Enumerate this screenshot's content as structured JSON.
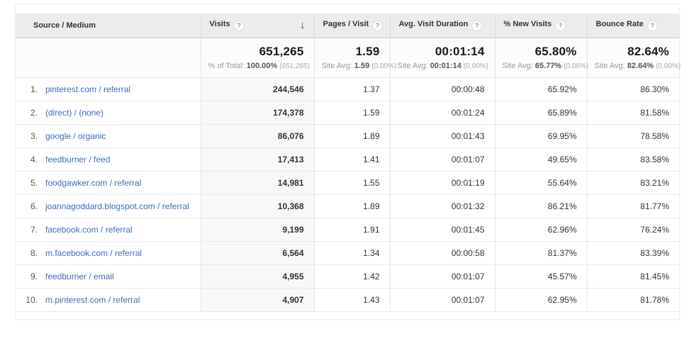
{
  "colors": {
    "link_blue": "#3d6db5",
    "header_gray": "#ececec",
    "sorted_col_bg": "#f8f8f8"
  },
  "table": {
    "columns": [
      {
        "label": "Source / Medium",
        "help": false,
        "sorted": false
      },
      {
        "label": "Visits",
        "help": true,
        "sorted": true,
        "sort_icon": "↓"
      },
      {
        "label": "Pages / Visit",
        "help": true,
        "sorted": false
      },
      {
        "label": "Avg. Visit Duration",
        "help": true,
        "sorted": false
      },
      {
        "label": "% New Visits",
        "help": true,
        "sorted": false
      },
      {
        "label": "Bounce Rate",
        "help": true,
        "sorted": false
      }
    ],
    "help_glyph": "?",
    "sort_icon": "↓",
    "summary": {
      "visits": {
        "value": "651,265",
        "sub_prefix": "% of Total:",
        "sub_value": "100.00%",
        "sub_paren": "(651,265)"
      },
      "pages": {
        "value": "1.59",
        "sub_prefix": "Site Avg:",
        "sub_value": "1.59",
        "sub_paren": "(0.00%)"
      },
      "duration": {
        "value": "00:01:14",
        "sub_prefix": "Site Avg:",
        "sub_value": "00:01:14",
        "sub_paren": "(0.00%)"
      },
      "new_visits": {
        "value": "65.80%",
        "sub_prefix": "Site Avg:",
        "sub_value": "65.77%",
        "sub_paren": "(0.06%)"
      },
      "bounce": {
        "value": "82.64%",
        "sub_prefix": "Site Avg:",
        "sub_value": "82.64%",
        "sub_paren": "(0.00%)"
      }
    },
    "rows": [
      {
        "rank": "1.",
        "source": "pinterest.com / referral",
        "visits": "244,546",
        "pages": "1.37",
        "duration": "00:00:48",
        "new_visits": "65.92%",
        "bounce": "86.30%"
      },
      {
        "rank": "2.",
        "source": "(direct) / (none)",
        "visits": "174,378",
        "pages": "1.59",
        "duration": "00:01:24",
        "new_visits": "65.89%",
        "bounce": "81.58%"
      },
      {
        "rank": "3.",
        "source": "google / organic",
        "visits": "86,076",
        "pages": "1.89",
        "duration": "00:01:43",
        "new_visits": "69.95%",
        "bounce": "78.58%"
      },
      {
        "rank": "4.",
        "source": "feedburner / feed",
        "visits": "17,413",
        "pages": "1.41",
        "duration": "00:01:07",
        "new_visits": "49.65%",
        "bounce": "83.58%"
      },
      {
        "rank": "5.",
        "source": "foodgawker.com / referral",
        "visits": "14,981",
        "pages": "1.55",
        "duration": "00:01:19",
        "new_visits": "55.64%",
        "bounce": "83.21%"
      },
      {
        "rank": "6.",
        "source": "joannagoddard.blogspot.com / referral",
        "visits": "10,368",
        "pages": "1.89",
        "duration": "00:01:32",
        "new_visits": "86.21%",
        "bounce": "81.77%"
      },
      {
        "rank": "7.",
        "source": "facebook.com / referral",
        "visits": "9,199",
        "pages": "1.91",
        "duration": "00:01:45",
        "new_visits": "62.96%",
        "bounce": "76.24%"
      },
      {
        "rank": "8.",
        "source": "m.facebook.com / referral",
        "visits": "6,564",
        "pages": "1.34",
        "duration": "00:00:58",
        "new_visits": "81.37%",
        "bounce": "83.39%"
      },
      {
        "rank": "9.",
        "source": "feedburner / email",
        "visits": "4,955",
        "pages": "1.42",
        "duration": "00:01:07",
        "new_visits": "45.57%",
        "bounce": "81.45%"
      },
      {
        "rank": "10.",
        "source": "m.pinterest.com / referral",
        "visits": "4,907",
        "pages": "1.43",
        "duration": "00:01:07",
        "new_visits": "62.95%",
        "bounce": "81.78%"
      }
    ]
  }
}
